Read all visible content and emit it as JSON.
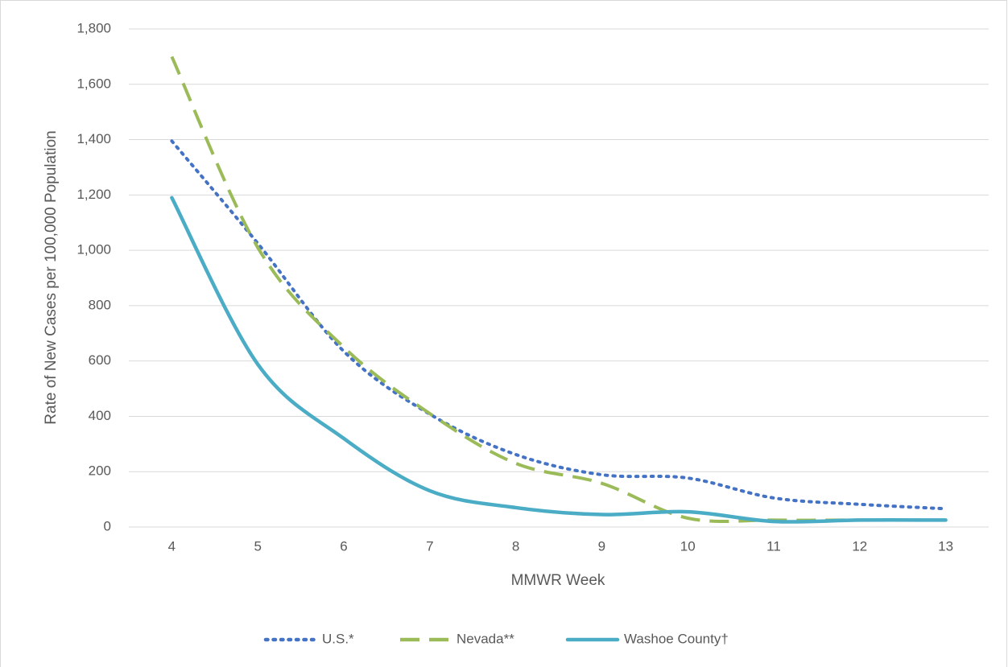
{
  "chart_data": {
    "type": "line",
    "x_label": "MMWR Week",
    "y_label": "Rate of New Cases per 100,000 Population",
    "categories": [
      "4",
      "5",
      "6",
      "7",
      "8",
      "9",
      "10",
      "11",
      "12",
      "13"
    ],
    "series": [
      {
        "name": "U.S.*",
        "color": "#4472c4",
        "dash": "dotted",
        "values": [
          1395,
          1025,
          635,
          408,
          262,
          189,
          177,
          105,
          82,
          66
        ]
      },
      {
        "name": "Nevada**",
        "color": "#9bbb59",
        "dash": "dashed",
        "values": [
          1700,
          1010,
          650,
          410,
          230,
          158,
          32,
          25,
          25,
          25
        ]
      },
      {
        "name": "Washoe County†",
        "color": "#4bacc6",
        "dash": "solid",
        "values": [
          1190,
          588,
          320,
          131,
          70,
          45,
          55,
          20,
          25,
          25
        ]
      }
    ],
    "ylim": [
      0,
      1800
    ],
    "yticks": [
      0,
      200,
      400,
      600,
      {
        "value": 800,
        "label": "800"
      },
      {
        "value": 1000,
        "label": "1,000"
      },
      {
        "value": 1200,
        "label": "1,200"
      },
      {
        "value": 1400,
        "label": "1,400"
      },
      {
        "value": 1600,
        "label": "1,600"
      },
      {
        "value": 1800,
        "label": "1,800"
      }
    ],
    "grid": true,
    "legend": "bottom"
  }
}
